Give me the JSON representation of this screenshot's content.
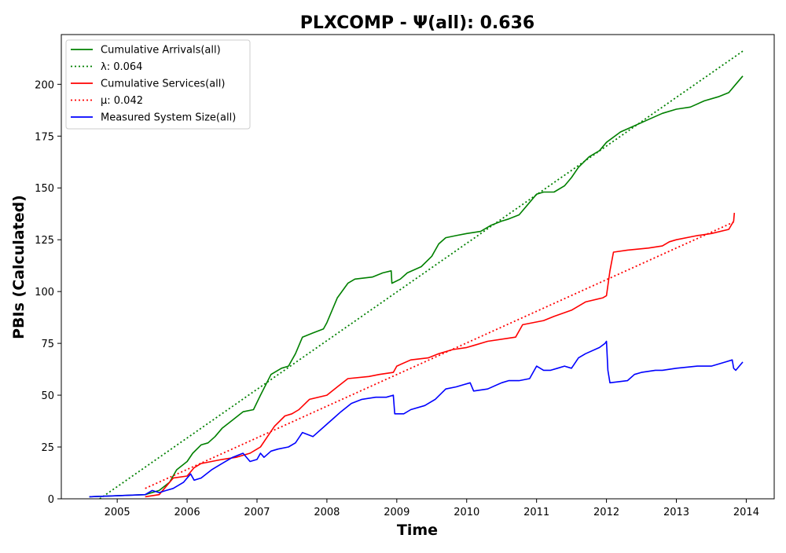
{
  "chart_data": {
    "type": "line",
    "title": "PLXCOMP -  Ψ(all): 0.636",
    "xlabel": "Time",
    "ylabel": "PBIs (Calculated)",
    "xlim": [
      2004.2,
      2014.4
    ],
    "ylim": [
      0,
      224
    ],
    "xticks": [
      2005,
      2006,
      2007,
      2008,
      2009,
      2010,
      2011,
      2012,
      2013,
      2014
    ],
    "xtick_labels": [
      "2005",
      "2006",
      "2007",
      "2008",
      "2009",
      "2010",
      "2011",
      "2012",
      "2013",
      "2014"
    ],
    "yticks": [
      0,
      25,
      50,
      75,
      100,
      125,
      150,
      175,
      200
    ],
    "ytick_labels": [
      "0",
      "25",
      "50",
      "75",
      "100",
      "125",
      "150",
      "175",
      "200"
    ],
    "legend_position": "upper-left",
    "series": [
      {
        "name": "Cumulative Arrivals(all)",
        "color": "#008000",
        "style": "solid",
        "x": [
          2004.6,
          2005.4,
          2005.6,
          2005.75,
          2005.85,
          2006.0,
          2006.08,
          2006.2,
          2006.3,
          2006.4,
          2006.5,
          2006.65,
          2006.8,
          2006.95,
          2007.05,
          2007.2,
          2007.35,
          2007.45,
          2007.55,
          2007.65,
          2007.8,
          2007.95,
          2008.0,
          2008.15,
          2008.3,
          2008.4,
          2008.65,
          2008.8,
          2008.92,
          2008.93,
          2009.05,
          2009.15,
          2009.35,
          2009.5,
          2009.6,
          2009.7,
          2009.85,
          2010.0,
          2010.2,
          2010.35,
          2010.5,
          2010.6,
          2010.75,
          2010.9,
          2011.0,
          2011.1,
          2011.25,
          2011.4,
          2011.5,
          2011.6,
          2011.75,
          2011.9,
          2012.0,
          2012.2,
          2012.4,
          2012.6,
          2012.8,
          2013.0,
          2013.2,
          2013.4,
          2013.6,
          2013.75,
          2013.85,
          2013.95
        ],
        "y": [
          1,
          2,
          4,
          8,
          14,
          18,
          22,
          26,
          27,
          30,
          34,
          38,
          42,
          43,
          50,
          60,
          63,
          64,
          70,
          78,
          80,
          82,
          85,
          97,
          104,
          106,
          107,
          109,
          110,
          104,
          106,
          109,
          112,
          117,
          123,
          126,
          127,
          128,
          129,
          132,
          134,
          135,
          137,
          143,
          147,
          148,
          148,
          151,
          155,
          160,
          165,
          168,
          172,
          177,
          180,
          183,
          186,
          188,
          189,
          192,
          194,
          196,
          200,
          204
        ]
      },
      {
        "name": "λ: 0.064",
        "color": "#008000",
        "style": "dotted",
        "x": [
          2004.75,
          2013.95
        ],
        "y": [
          0,
          216
        ]
      },
      {
        "name": "Cumulative Services(all)",
        "color": "#ff0000",
        "style": "solid",
        "x": [
          2005.4,
          2005.6,
          2005.7,
          2005.8,
          2006.0,
          2006.1,
          2006.2,
          2006.5,
          2006.7,
          2006.9,
          2007.0,
          2007.05,
          2007.15,
          2007.25,
          2007.4,
          2007.5,
          2007.6,
          2007.75,
          2008.0,
          2008.15,
          2008.3,
          2008.6,
          2008.75,
          2008.95,
          2009.0,
          2009.2,
          2009.45,
          2009.6,
          2009.8,
          2010.0,
          2010.1,
          2010.3,
          2010.7,
          2010.8,
          2011.1,
          2011.25,
          2011.5,
          2011.7,
          2011.95,
          2012.0,
          2012.05,
          2012.1,
          2012.3,
          2012.6,
          2012.8,
          2012.9,
          2013.0,
          2013.3,
          2013.5,
          2013.75,
          2013.82,
          2013.83
        ],
        "y": [
          1,
          2,
          6,
          10,
          11,
          15,
          17,
          19,
          20,
          22,
          24,
          25,
          30,
          35,
          40,
          41,
          43,
          48,
          50,
          54,
          58,
          59,
          60,
          61,
          64,
          67,
          68,
          70,
          72,
          73,
          74,
          76,
          78,
          84,
          86,
          88,
          91,
          95,
          97,
          98,
          110,
          119,
          120,
          121,
          122,
          124,
          125,
          127,
          128,
          130,
          134,
          138
        ]
      },
      {
        "name": "μ: 0.042",
        "color": "#ff0000",
        "style": "dotted",
        "x": [
          2005.4,
          2013.85
        ],
        "y": [
          5,
          134
        ]
      },
      {
        "name": "Measured System Size(all)",
        "color": "#0000ff",
        "style": "solid",
        "x": [
          2004.6,
          2005.4,
          2005.5,
          2005.6,
          2005.7,
          2005.8,
          2005.95,
          2006.05,
          2006.1,
          2006.2,
          2006.35,
          2006.5,
          2006.65,
          2006.8,
          2006.9,
          2007.0,
          2007.05,
          2007.1,
          2007.2,
          2007.3,
          2007.45,
          2007.55,
          2007.65,
          2007.8,
          2008.0,
          2008.1,
          2008.2,
          2008.35,
          2008.5,
          2008.7,
          2008.85,
          2008.95,
          2008.97,
          2009.1,
          2009.2,
          2009.4,
          2009.55,
          2009.7,
          2009.85,
          2009.95,
          2010.05,
          2010.1,
          2010.3,
          2010.5,
          2010.6,
          2010.75,
          2010.9,
          2011.0,
          2011.1,
          2011.2,
          2011.3,
          2011.4,
          2011.5,
          2011.6,
          2011.7,
          2011.9,
          2011.98,
          2012.0,
          2012.02,
          2012.05,
          2012.3,
          2012.4,
          2012.5,
          2012.7,
          2012.8,
          2013.0,
          2013.3,
          2013.5,
          2013.7,
          2013.8,
          2013.82,
          2013.85,
          2013.95
        ],
        "y": [
          1,
          2,
          4,
          3,
          4,
          5,
          8,
          12,
          9,
          10,
          14,
          17,
          20,
          22,
          18,
          19,
          22,
          20,
          23,
          24,
          25,
          27,
          32,
          30,
          36,
          39,
          42,
          46,
          48,
          49,
          49,
          50,
          41,
          41,
          43,
          45,
          48,
          53,
          54,
          55,
          56,
          52,
          53,
          56,
          57,
          57,
          58,
          64,
          62,
          62,
          63,
          64,
          63,
          68,
          70,
          73,
          75,
          76,
          62,
          56,
          57,
          60,
          61,
          62,
          62,
          63,
          64,
          64,
          66,
          67,
          63,
          62,
          66
        ]
      }
    ]
  }
}
